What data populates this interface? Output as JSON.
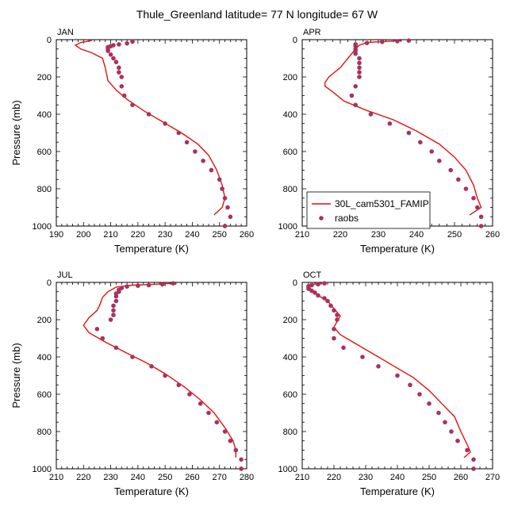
{
  "title": "Thule_Greenland  latitude= 77 N longitude= 67 W",
  "legend": {
    "model_label": "30L_cam5301_FAMIP",
    "obs_label": "raobs",
    "model_color": "#e3120b",
    "obs_color": "#a8325e"
  },
  "chart_data": [
    {
      "type": "line",
      "panel": "JAN",
      "xlabel": "Temperature (K)",
      "ylabel": "Pressure (mb)",
      "xlim": [
        190,
        260
      ],
      "ylim": [
        1000,
        0
      ],
      "xticks": [
        190,
        200,
        210,
        220,
        230,
        240,
        250,
        260
      ],
      "yticks": [
        0,
        200,
        400,
        600,
        800,
        1000
      ],
      "series": [
        {
          "name": "30L_cam5301_FAMIP",
          "style": "line",
          "points": [
            [
              203,
              5
            ],
            [
              199,
              15
            ],
            [
              197,
              30
            ],
            [
              199,
              50
            ],
            [
              203,
              70
            ],
            [
              207,
              100
            ],
            [
              208,
              150
            ],
            [
              209,
              220
            ],
            [
              212,
              270
            ],
            [
              216,
              320
            ],
            [
              222,
              380
            ],
            [
              229,
              440
            ],
            [
              236,
              500
            ],
            [
              242,
              560
            ],
            [
              246,
              620
            ],
            [
              249,
              700
            ],
            [
              251,
              780
            ],
            [
              252,
              850
            ],
            [
              251,
              900
            ],
            [
              248,
              940
            ]
          ]
        },
        {
          "name": "raobs",
          "style": "markers",
          "points": [
            [
              218,
              10
            ],
            [
              216,
              20
            ],
            [
              213,
              25
            ],
            [
              211,
              30
            ],
            [
              210,
              35
            ],
            [
              209,
              40
            ],
            [
              209,
              50
            ],
            [
              209,
              60
            ],
            [
              210,
              80
            ],
            [
              211,
              100
            ],
            [
              212,
              120
            ],
            [
              213,
              150
            ],
            [
              213,
              175
            ],
            [
              214,
              200
            ],
            [
              214,
              250
            ],
            [
              215,
              300
            ],
            [
              218,
              350
            ],
            [
              224,
              400
            ],
            [
              230,
              450
            ],
            [
              235,
              500
            ],
            [
              238,
              550
            ],
            [
              241,
              600
            ],
            [
              244,
              650
            ],
            [
              247,
              700
            ],
            [
              250,
              750
            ],
            [
              251,
              800
            ],
            [
              252,
              850
            ],
            [
              253,
              900
            ],
            [
              254,
              950
            ],
            [
              252,
              1000
            ]
          ]
        }
      ]
    },
    {
      "type": "line",
      "panel": "APR",
      "xlabel": "Temperature (K)",
      "ylabel": "",
      "xlim": [
        210,
        260
      ],
      "ylim": [
        1000,
        0
      ],
      "xticks": [
        210,
        220,
        230,
        240,
        250,
        260
      ],
      "yticks": [
        0,
        200,
        400,
        600,
        800,
        1000
      ],
      "series": [
        {
          "name": "30L_cam5301_FAMIP",
          "style": "line",
          "points": [
            [
              236,
              5
            ],
            [
              231,
              10
            ],
            [
              227,
              15
            ],
            [
              225,
              30
            ],
            [
              224,
              50
            ],
            [
              222,
              100
            ],
            [
              220,
              150
            ],
            [
              217,
              200
            ],
            [
              216,
              230
            ],
            [
              216,
              250
            ],
            [
              218,
              280
            ],
            [
              221,
              330
            ],
            [
              227,
              380
            ],
            [
              234,
              430
            ],
            [
              240,
              490
            ],
            [
              246,
              560
            ],
            [
              250,
              630
            ],
            [
              253,
              700
            ],
            [
              255,
              780
            ],
            [
              256,
              850
            ],
            [
              257,
              900
            ],
            [
              254,
              940
            ]
          ]
        },
        {
          "name": "raobs",
          "style": "markers",
          "points": [
            [
              238,
              5
            ],
            [
              235,
              8
            ],
            [
              231,
              12
            ],
            [
              227,
              18
            ],
            [
              224,
              25
            ],
            [
              224,
              35
            ],
            [
              224,
              50
            ],
            [
              224,
              60
            ],
            [
              224,
              75
            ],
            [
              225,
              100
            ],
            [
              225,
              125
            ],
            [
              225,
              150
            ],
            [
              225,
              175
            ],
            [
              225,
              200
            ],
            [
              224,
              250
            ],
            [
              223,
              300
            ],
            [
              224,
              350
            ],
            [
              228,
              400
            ],
            [
              233,
              450
            ],
            [
              238,
              500
            ],
            [
              241,
              550
            ],
            [
              244,
              600
            ],
            [
              246,
              650
            ],
            [
              249,
              700
            ],
            [
              251,
              750
            ],
            [
              253,
              800
            ],
            [
              255,
              850
            ],
            [
              256,
              900
            ],
            [
              257,
              950
            ],
            [
              257,
              1000
            ]
          ]
        }
      ]
    },
    {
      "type": "line",
      "panel": "JUL",
      "xlabel": "Temperature (K)",
      "ylabel": "Pressure (mb)",
      "xlim": [
        210,
        280
      ],
      "ylim": [
        1000,
        0
      ],
      "xticks": [
        210,
        220,
        230,
        240,
        250,
        260,
        270,
        280
      ],
      "yticks": [
        0,
        200,
        400,
        600,
        800,
        1000
      ],
      "series": [
        {
          "name": "30L_cam5301_FAMIP",
          "style": "line",
          "points": [
            [
              253,
              5
            ],
            [
              246,
              10
            ],
            [
              238,
              15
            ],
            [
              232,
              25
            ],
            [
              229,
              50
            ],
            [
              227,
              80
            ],
            [
              226,
              120
            ],
            [
              225,
              150
            ],
            [
              222,
              190
            ],
            [
              220,
              230
            ],
            [
              222,
              270
            ],
            [
              228,
              320
            ],
            [
              236,
              380
            ],
            [
              243,
              430
            ],
            [
              250,
              490
            ],
            [
              257,
              560
            ],
            [
              263,
              630
            ],
            [
              268,
              700
            ],
            [
              272,
              780
            ],
            [
              275,
              850
            ],
            [
              276,
              900
            ],
            [
              276,
              940
            ]
          ]
        },
        {
          "name": "raobs",
          "style": "markers",
          "points": [
            [
              253,
              5
            ],
            [
              249,
              10
            ],
            [
              244,
              15
            ],
            [
              240,
              18
            ],
            [
              236,
              22
            ],
            [
              234,
              30
            ],
            [
              233,
              40
            ],
            [
              233,
              50
            ],
            [
              232,
              60
            ],
            [
              232,
              75
            ],
            [
              232,
              100
            ],
            [
              231,
              125
            ],
            [
              231,
              150
            ],
            [
              231,
              175
            ],
            [
              230,
              200
            ],
            [
              225,
              250
            ],
            [
              227,
              300
            ],
            [
              232,
              350
            ],
            [
              238,
              400
            ],
            [
              245,
              450
            ],
            [
              250,
              500
            ],
            [
              255,
              550
            ],
            [
              259,
              600
            ],
            [
              263,
              650
            ],
            [
              266,
              700
            ],
            [
              269,
              750
            ],
            [
              272,
              800
            ],
            [
              274,
              850
            ],
            [
              276,
              900
            ],
            [
              278,
              950
            ],
            [
              278,
              1000
            ]
          ]
        }
      ]
    },
    {
      "type": "line",
      "panel": "OCT",
      "xlabel": "Temperature (K)",
      "ylabel": "",
      "xlim": [
        210,
        270
      ],
      "ylim": [
        1000,
        0
      ],
      "xticks": [
        210,
        220,
        230,
        240,
        250,
        260,
        270
      ],
      "yticks": [
        0,
        200,
        400,
        600,
        800,
        1000
      ],
      "series": [
        {
          "name": "30L_cam5301_FAMIP",
          "style": "line",
          "points": [
            [
              216,
              5
            ],
            [
              213,
              10
            ],
            [
              212,
              20
            ],
            [
              213,
              40
            ],
            [
              215,
              70
            ],
            [
              218,
              100
            ],
            [
              220,
              140
            ],
            [
              222,
              180
            ],
            [
              221,
              210
            ],
            [
              220,
              240
            ],
            [
              222,
              280
            ],
            [
              227,
              330
            ],
            [
              233,
              390
            ],
            [
              239,
              450
            ],
            [
              245,
              510
            ],
            [
              250,
              580
            ],
            [
              254,
              650
            ],
            [
              258,
              720
            ],
            [
              260,
              800
            ],
            [
              262,
              870
            ],
            [
              263,
              910
            ],
            [
              261,
              940
            ]
          ]
        },
        {
          "name": "raobs",
          "style": "markers",
          "points": [
            [
              217,
              5
            ],
            [
              215,
              10
            ],
            [
              213,
              15
            ],
            [
              212,
              20
            ],
            [
              212,
              25
            ],
            [
              212,
              35
            ],
            [
              213,
              45
            ],
            [
              214,
              55
            ],
            [
              215,
              70
            ],
            [
              217,
              85
            ],
            [
              218,
              100
            ],
            [
              219,
              125
            ],
            [
              220,
              150
            ],
            [
              221,
              175
            ],
            [
              221,
              200
            ],
            [
              220,
              250
            ],
            [
              220,
              300
            ],
            [
              223,
              350
            ],
            [
              229,
              400
            ],
            [
              234,
              450
            ],
            [
              240,
              500
            ],
            [
              244,
              550
            ],
            [
              247,
              600
            ],
            [
              250,
              650
            ],
            [
              253,
              700
            ],
            [
              255,
              750
            ],
            [
              257,
              800
            ],
            [
              259,
              850
            ],
            [
              262,
              900
            ],
            [
              264,
              950
            ],
            [
              264,
              1000
            ]
          ]
        }
      ]
    }
  ]
}
